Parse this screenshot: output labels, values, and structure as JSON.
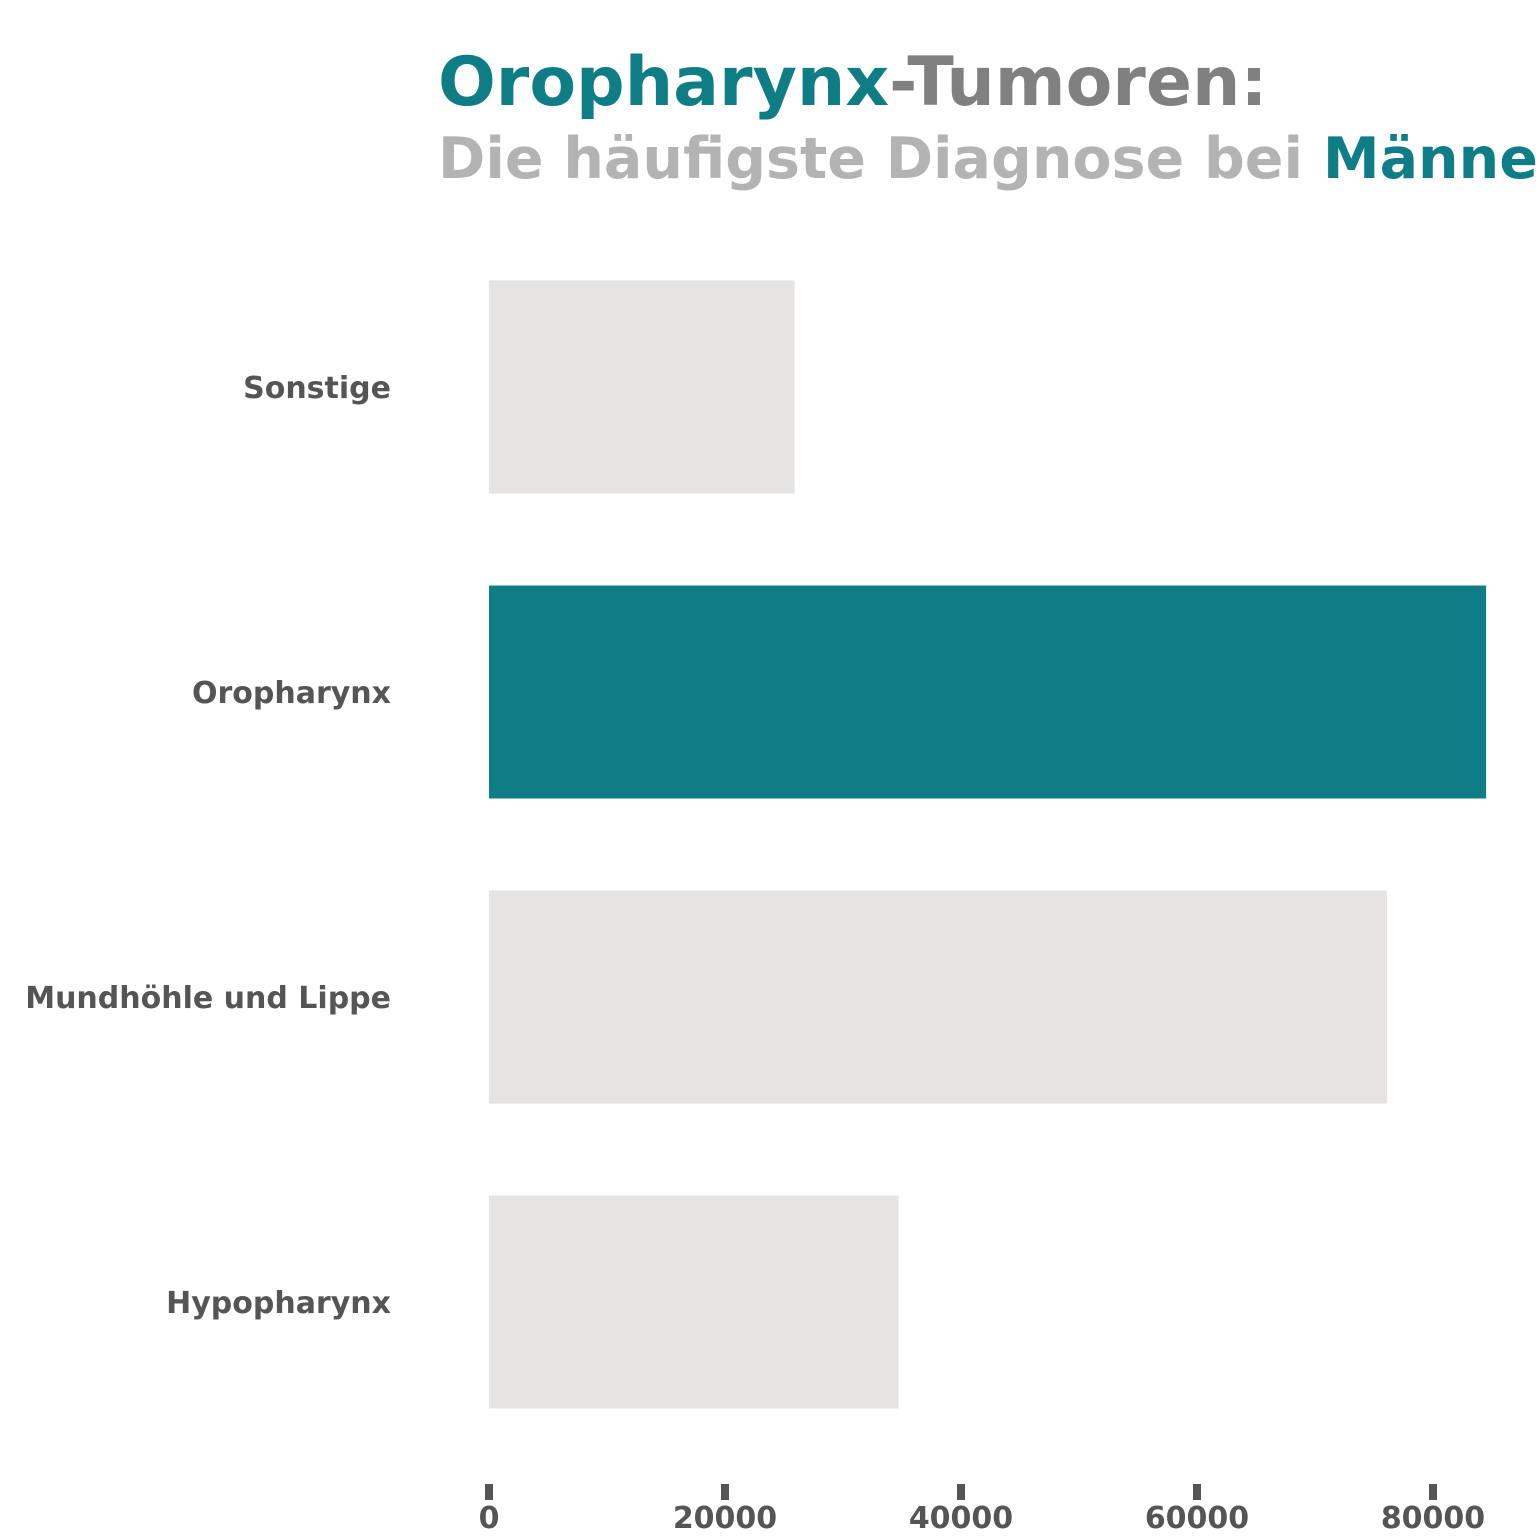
{
  "colors": {
    "accent": "#0f7d86",
    "title_gray": "#808080",
    "subtitle_gray": "#b3b3b3",
    "bar_default": "#e5e4e2",
    "label": "#555555"
  },
  "chart_data": {
    "type": "bar",
    "orientation": "horizontal",
    "title": {
      "highlight": "Oropharynx",
      "rest": "-Tumoren:"
    },
    "subtitle": {
      "prefix": "Die häufigste Diagnose bei ",
      "highlight": "Männern"
    },
    "categories": [
      "Sonstige",
      "Oropharynx",
      "Mundhöhle und Lippe",
      "Hypopharynx"
    ],
    "values": [
      25900,
      84500,
      76100,
      34700
    ],
    "highlight_category": "Oropharynx",
    "xlim": [
      0,
      87000
    ],
    "xticks": [
      0,
      20000,
      40000,
      60000,
      80000
    ],
    "xtick_labels": [
      "0",
      "20000",
      "40000",
      "60000",
      "80000"
    ],
    "grid": false,
    "legend": "none"
  }
}
